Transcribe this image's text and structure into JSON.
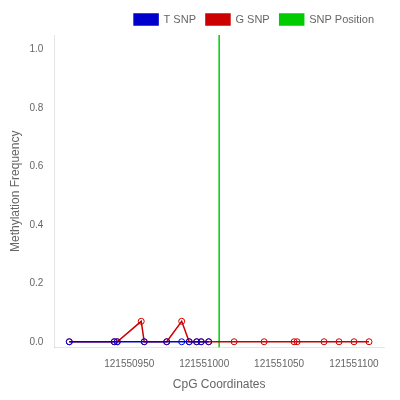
{
  "chart_data": {
    "type": "line",
    "xlabel": "CpG Coordinates",
    "ylabel": "Methylation Frequency",
    "xlim": [
      121550900,
      121551120
    ],
    "ylim": [
      -0.02,
      1.05
    ],
    "xticks": [
      121550950,
      121551000,
      121551050,
      121551100
    ],
    "yticks": [
      {
        "value": 0,
        "label": "0.0"
      },
      0.2,
      0.4,
      0.6,
      0.8,
      {
        "value": 1,
        "label": "1.0"
      }
    ],
    "series": [
      {
        "name": "T SNP",
        "color": "#0000cc",
        "marker": "circle",
        "line_style": "solid",
        "x": [
          121550910,
          121550940,
          121550942,
          121550960,
          121550975,
          121550985,
          121550990,
          121550995,
          121550998,
          121551003
        ],
        "values": [
          0.0,
          0.0,
          0.0,
          0.0,
          0.0,
          0.0,
          0.0,
          0.0,
          0.0,
          0.0
        ]
      },
      {
        "name": "G SNP",
        "color": "#cc0000",
        "marker": "circle",
        "line_style": "solid",
        "x": [
          121550910,
          121550940,
          121550942,
          121550958,
          121550960,
          121550975,
          121550985,
          121550990,
          121550995,
          121550998,
          121551003,
          121551020,
          121551040,
          121551060,
          121551062,
          121551080,
          121551090,
          121551100,
          121551110
        ],
        "values": [
          0.0,
          0.0,
          0.0,
          0.07,
          0.0,
          0.0,
          0.07,
          0.0,
          0.0,
          0.0,
          0.0,
          0.0,
          0.0,
          0.0,
          0.0,
          0.0,
          0.0,
          0.0,
          0.0
        ]
      }
    ],
    "vlines": [
      {
        "name": "SNP Position",
        "x": 121551010,
        "color": "#00cc00"
      }
    ],
    "grid": false,
    "legend": "upper right"
  }
}
